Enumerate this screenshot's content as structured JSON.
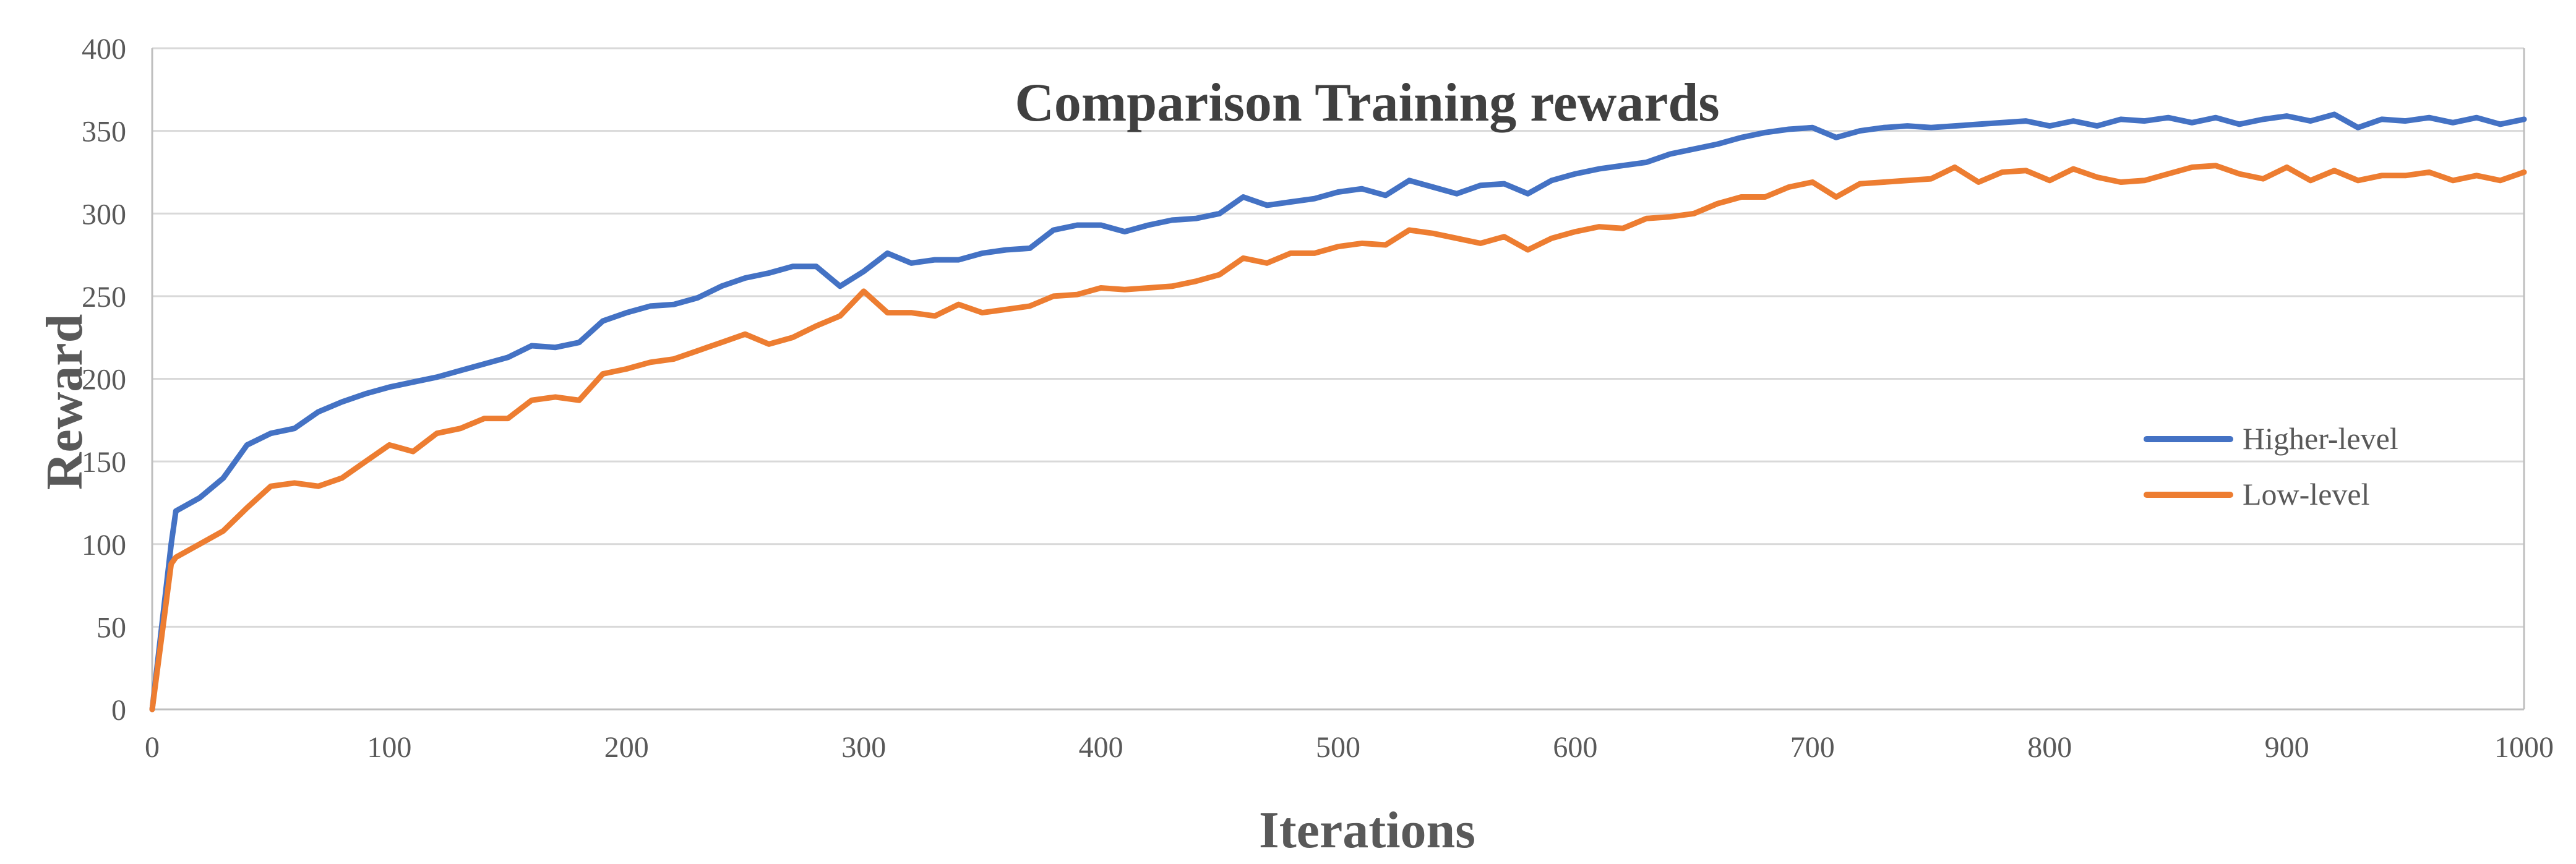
{
  "chart_data": {
    "type": "line",
    "title": "Comparison Training rewards",
    "xlabel": "Iterations",
    "ylabel": "Reward",
    "xlim": [
      0,
      1000
    ],
    "ylim": [
      0,
      400
    ],
    "x_ticks": [
      0,
      100,
      200,
      300,
      400,
      500,
      600,
      700,
      800,
      900,
      1000
    ],
    "y_ticks": [
      0,
      50,
      100,
      150,
      200,
      250,
      300,
      350,
      400
    ],
    "grid": "horizontal",
    "legend_position": "right",
    "series": [
      {
        "name": "Higher-level",
        "color": "#4472C4",
        "x": [
          0,
          8,
          10,
          20,
          30,
          40,
          50,
          60,
          70,
          80,
          90,
          100,
          110,
          120,
          130,
          140,
          150,
          160,
          170,
          180,
          190,
          200,
          210,
          220,
          230,
          240,
          250,
          260,
          270,
          280,
          290,
          300,
          310,
          320,
          330,
          340,
          350,
          360,
          370,
          380,
          390,
          400,
          410,
          420,
          430,
          440,
          450,
          460,
          470,
          480,
          490,
          500,
          510,
          520,
          530,
          540,
          550,
          560,
          570,
          580,
          590,
          600,
          610,
          620,
          630,
          640,
          650,
          660,
          670,
          680,
          690,
          700,
          710,
          720,
          730,
          740,
          750,
          760,
          770,
          780,
          790,
          800,
          810,
          820,
          830,
          840,
          850,
          860,
          870,
          880,
          890,
          900,
          910,
          920,
          930,
          940,
          950,
          960,
          970,
          980,
          990,
          1000
        ],
        "y": [
          0,
          100,
          120,
          128,
          140,
          160,
          167,
          170,
          180,
          186,
          191,
          195,
          198,
          201,
          205,
          209,
          213,
          220,
          219,
          222,
          235,
          240,
          244,
          245,
          249,
          256,
          261,
          264,
          268,
          268,
          256,
          265,
          276,
          270,
          272,
          272,
          276,
          278,
          279,
          290,
          293,
          293,
          289,
          293,
          296,
          297,
          300,
          310,
          305,
          307,
          309,
          313,
          315,
          311,
          320,
          316,
          312,
          317,
          318,
          312,
          320,
          324,
          327,
          329,
          331,
          336,
          339,
          342,
          346,
          349,
          351,
          352,
          346,
          350,
          352,
          353,
          352,
          353,
          354,
          355,
          356,
          353,
          356,
          353,
          357,
          356,
          358,
          355,
          358,
          354,
          357,
          359,
          356,
          360,
          352,
          357,
          356,
          358,
          355,
          358,
          354,
          357
        ]
      },
      {
        "name": "Low-level",
        "color": "#ED7D31",
        "x": [
          0,
          8,
          10,
          20,
          30,
          40,
          50,
          60,
          70,
          80,
          90,
          100,
          110,
          120,
          130,
          140,
          150,
          160,
          170,
          180,
          190,
          200,
          210,
          220,
          230,
          240,
          250,
          260,
          270,
          280,
          290,
          300,
          310,
          320,
          330,
          340,
          350,
          360,
          370,
          380,
          390,
          400,
          410,
          420,
          430,
          440,
          450,
          460,
          470,
          480,
          490,
          500,
          510,
          520,
          530,
          540,
          550,
          560,
          570,
          580,
          590,
          600,
          610,
          620,
          630,
          640,
          650,
          660,
          670,
          680,
          690,
          700,
          710,
          720,
          730,
          740,
          750,
          760,
          770,
          780,
          790,
          800,
          810,
          820,
          830,
          840,
          850,
          860,
          870,
          880,
          890,
          900,
          910,
          920,
          930,
          940,
          950,
          960,
          970,
          980,
          990,
          1000
        ],
        "y": [
          0,
          88,
          92,
          100,
          108,
          122,
          135,
          137,
          135,
          140,
          150,
          160,
          156,
          167,
          170,
          176,
          176,
          187,
          189,
          187,
          203,
          206,
          210,
          212,
          217,
          222,
          227,
          221,
          225,
          232,
          238,
          253,
          240,
          240,
          238,
          245,
          240,
          242,
          244,
          250,
          251,
          255,
          254,
          255,
          256,
          259,
          263,
          273,
          270,
          276,
          276,
          280,
          282,
          281,
          290,
          288,
          285,
          282,
          286,
          278,
          285,
          289,
          292,
          291,
          297,
          298,
          300,
          306,
          310,
          310,
          316,
          319,
          310,
          318,
          319,
          320,
          321,
          328,
          319,
          325,
          326,
          320,
          327,
          322,
          319,
          320,
          324,
          328,
          329,
          324,
          321,
          328,
          320,
          326,
          320,
          323,
          323,
          325,
          320,
          323,
          320,
          325
        ]
      }
    ]
  }
}
